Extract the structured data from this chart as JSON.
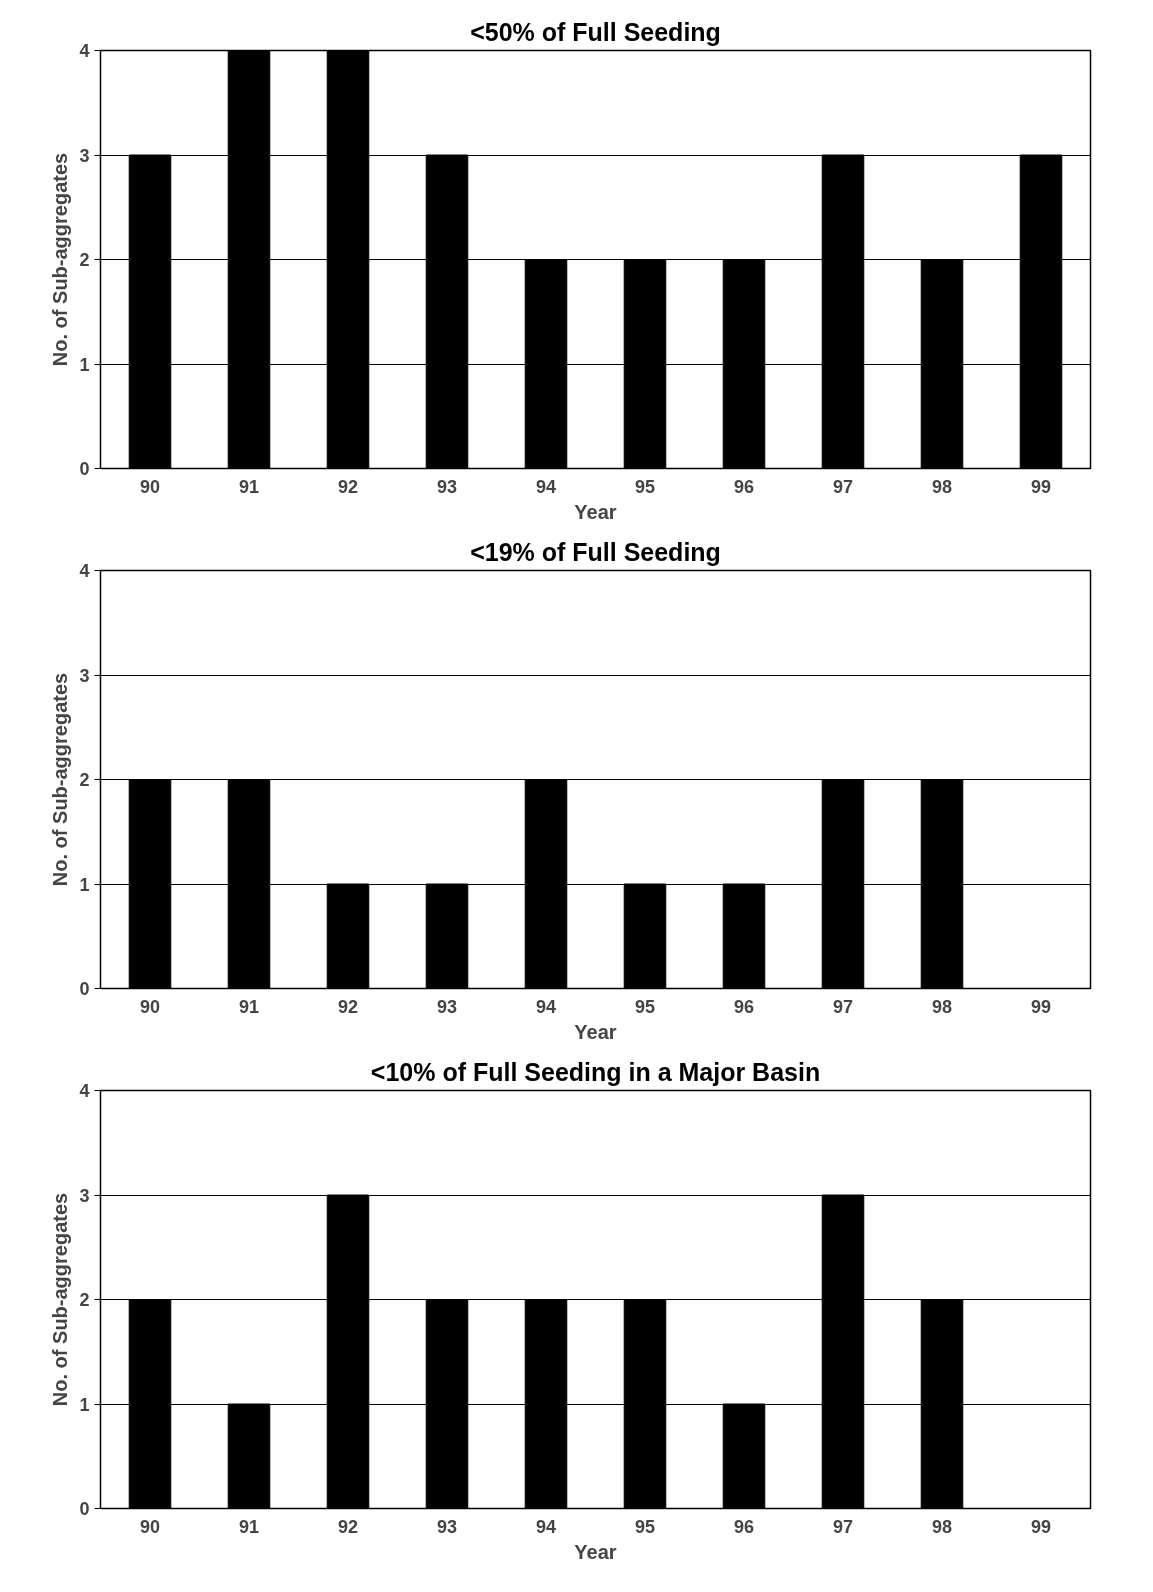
{
  "chart_data": [
    {
      "type": "bar",
      "title": "<50% of Full Seeding",
      "xlabel": "Year",
      "ylabel": "No. of Sub-aggregates",
      "categories": [
        "90",
        "91",
        "92",
        "93",
        "94",
        "95",
        "96",
        "97",
        "98",
        "99"
      ],
      "values": [
        3,
        4,
        4,
        3,
        2,
        2,
        2,
        3,
        2,
        3
      ],
      "color": "#000000",
      "ylim": [
        0,
        4
      ],
      "yticks": [
        0,
        1,
        2,
        3,
        4
      ],
      "grid": "y"
    },
    {
      "type": "bar",
      "title": "<19% of Full Seeding",
      "xlabel": "Year",
      "ylabel": "No. of Sub-aggregates",
      "categories": [
        "90",
        "91",
        "92",
        "93",
        "94",
        "95",
        "96",
        "97",
        "98",
        "99"
      ],
      "values": [
        2,
        2,
        1,
        1,
        2,
        1,
        1,
        2,
        2,
        0
      ],
      "color": "#000000",
      "ylim": [
        0,
        4
      ],
      "yticks": [
        0,
        1,
        2,
        3,
        4
      ],
      "grid": "y"
    },
    {
      "type": "bar",
      "title": "<10% of Full Seeding in a Major Basin",
      "xlabel": "Year",
      "ylabel": "No. of Sub-aggregates",
      "categories": [
        "90",
        "91",
        "92",
        "93",
        "94",
        "95",
        "96",
        "97",
        "98",
        "99"
      ],
      "values": [
        2,
        1,
        3,
        2,
        2,
        2,
        1,
        3,
        2,
        0
      ],
      "color": "#000000",
      "ylim": [
        0,
        4
      ],
      "yticks": [
        0,
        1,
        2,
        3,
        4
      ],
      "grid": "y"
    }
  ]
}
